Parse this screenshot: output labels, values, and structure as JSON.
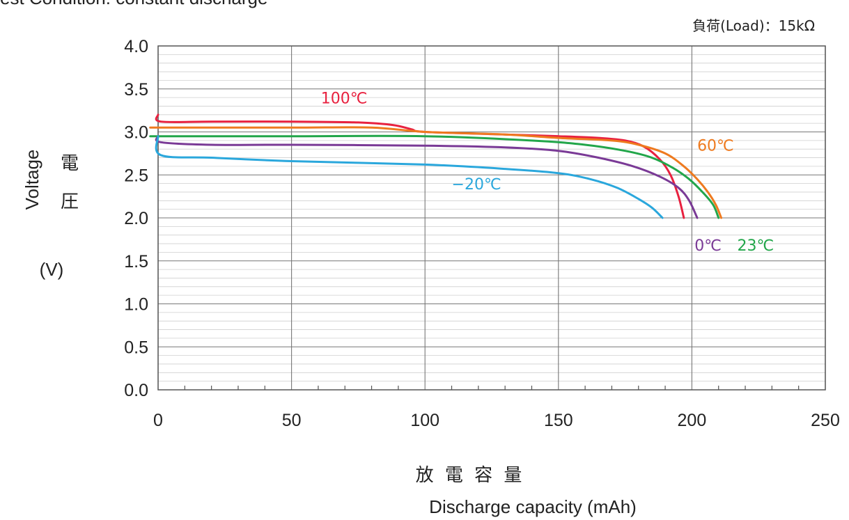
{
  "header": {
    "condition_text": "est Condition:  constant discharge",
    "load_text": "負荷(Load)：15kΩ"
  },
  "y_axis": {
    "cjk_char_1": "電",
    "cjk_char_2": "圧",
    "title": "Voltage",
    "unit": "(V)"
  },
  "x_axis": {
    "cjk_title": "放 電 容 量",
    "title": "Discharge capacity (mAh)"
  },
  "chart_data": {
    "type": "line",
    "xlabel": "Discharge capacity (mAh)",
    "ylabel": "Voltage (V)",
    "xlim": [
      0,
      250
    ],
    "ylim": [
      0.0,
      4.0
    ],
    "x_ticks": [
      0,
      50,
      100,
      150,
      200,
      250
    ],
    "y_ticks": [
      "0.0",
      "0.5",
      "1.0",
      "1.5",
      "2.0",
      "2.5",
      "3.0",
      "3.5",
      "4.0"
    ],
    "grid": true,
    "series": [
      {
        "name": "100℃",
        "color": "#e8213f",
        "points": [
          [
            0,
            3.2
          ],
          [
            1,
            3.12
          ],
          [
            20,
            3.12
          ],
          [
            50,
            3.12
          ],
          [
            75,
            3.11
          ],
          [
            88,
            3.08
          ],
          [
            95,
            3.03
          ],
          [
            100,
            3.0
          ],
          [
            130,
            2.97
          ],
          [
            150,
            2.95
          ],
          [
            165,
            2.93
          ],
          [
            175,
            2.9
          ],
          [
            182,
            2.83
          ],
          [
            188,
            2.68
          ],
          [
            192,
            2.5
          ],
          [
            195,
            2.25
          ],
          [
            197,
            2.0
          ]
        ]
      },
      {
        "name": "60℃",
        "color": "#ee7a1f",
        "points": [
          [
            0,
            3.05
          ],
          [
            1,
            3.05
          ],
          [
            50,
            3.05
          ],
          [
            80,
            3.05
          ],
          [
            100,
            3.0
          ],
          [
            130,
            2.97
          ],
          [
            150,
            2.93
          ],
          [
            170,
            2.9
          ],
          [
            180,
            2.85
          ],
          [
            190,
            2.75
          ],
          [
            197,
            2.6
          ],
          [
            202,
            2.45
          ],
          [
            206,
            2.3
          ],
          [
            209,
            2.15
          ],
          [
            211,
            2.0
          ]
        ]
      },
      {
        "name": "23℃",
        "color": "#22a64a",
        "points": [
          [
            0,
            2.95
          ],
          [
            1,
            2.95
          ],
          [
            50,
            2.95
          ],
          [
            100,
            2.95
          ],
          [
            140,
            2.9
          ],
          [
            160,
            2.85
          ],
          [
            175,
            2.78
          ],
          [
            185,
            2.7
          ],
          [
            193,
            2.58
          ],
          [
            199,
            2.45
          ],
          [
            204,
            2.3
          ],
          [
            208,
            2.15
          ],
          [
            210,
            2.0
          ]
        ]
      },
      {
        "name": "0℃",
        "color": "#7a3a96",
        "points": [
          [
            0,
            2.95
          ],
          [
            1,
            2.88
          ],
          [
            20,
            2.85
          ],
          [
            50,
            2.85
          ],
          [
            100,
            2.84
          ],
          [
            130,
            2.82
          ],
          [
            150,
            2.78
          ],
          [
            165,
            2.7
          ],
          [
            178,
            2.6
          ],
          [
            188,
            2.48
          ],
          [
            195,
            2.35
          ],
          [
            199,
            2.2
          ],
          [
            202,
            2.0
          ]
        ]
      },
      {
        "name": "−20℃",
        "color": "#2aa7dc",
        "points": [
          [
            0,
            2.95
          ],
          [
            1,
            2.73
          ],
          [
            20,
            2.7
          ],
          [
            50,
            2.66
          ],
          [
            100,
            2.62
          ],
          [
            130,
            2.57
          ],
          [
            150,
            2.52
          ],
          [
            162,
            2.45
          ],
          [
            172,
            2.35
          ],
          [
            180,
            2.22
          ],
          [
            185,
            2.12
          ],
          [
            189,
            2.0
          ]
        ]
      }
    ],
    "labels": [
      {
        "text": "100℃",
        "color": "#e8213f",
        "x": 61,
        "y": 3.33
      },
      {
        "text": "60℃",
        "color": "#ee7a1f",
        "x": 202,
        "y": 2.78
      },
      {
        "text": "23℃",
        "color": "#22a64a",
        "x": 217,
        "y": 1.62
      },
      {
        "text": "0℃",
        "color": "#7a3a96",
        "x": 201,
        "y": 1.62
      },
      {
        "text": "−20℃",
        "color": "#2aa7dc",
        "x": 110,
        "y": 2.33
      }
    ]
  }
}
